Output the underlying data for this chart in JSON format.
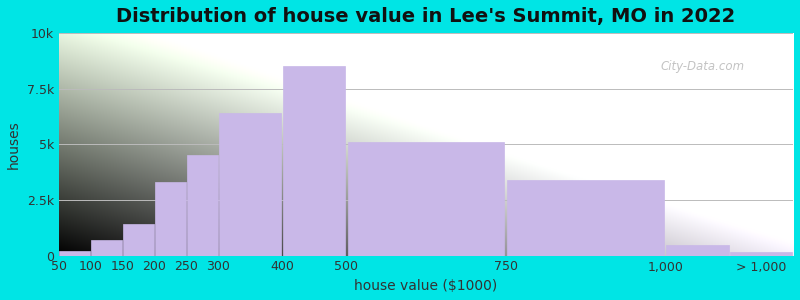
{
  "title": "Distribution of house value in Lee's Summit, MO in 2022",
  "xlabel": "house value ($1000)",
  "ylabel": "houses",
  "bar_color": "#c9b8e8",
  "background_outer": "#00e5e5",
  "background_inner_top": "#e8f5e0",
  "background_inner_bottom": "#f5f0fa",
  "values": [
    200,
    700,
    1400,
    3300,
    4500,
    6400,
    8500,
    5100,
    3400,
    500,
    150
  ],
  "bar_lefts": [
    50,
    100,
    150,
    200,
    250,
    300,
    400,
    500,
    750,
    1000,
    1100
  ],
  "bar_widths": [
    50,
    50,
    50,
    50,
    50,
    100,
    100,
    250,
    250,
    100,
    100
  ],
  "xlim": [
    50,
    1200
  ],
  "ylim": [
    0,
    10000
  ],
  "yticks": [
    0,
    2500,
    5000,
    7500,
    10000
  ],
  "ytick_labels": [
    "0",
    "2.5k",
    "5k",
    "7.5k",
    "10k"
  ],
  "xtick_positions": [
    50,
    100,
    150,
    200,
    250,
    300,
    400,
    500,
    750,
    1000,
    1150
  ],
  "xtick_labels": [
    "50",
    "100",
    "150",
    "200",
    "250",
    "300",
    "400",
    "500",
    "750",
    "1,000",
    "> 1,000"
  ],
  "title_fontsize": 14,
  "axis_fontsize": 10,
  "tick_fontsize": 9
}
